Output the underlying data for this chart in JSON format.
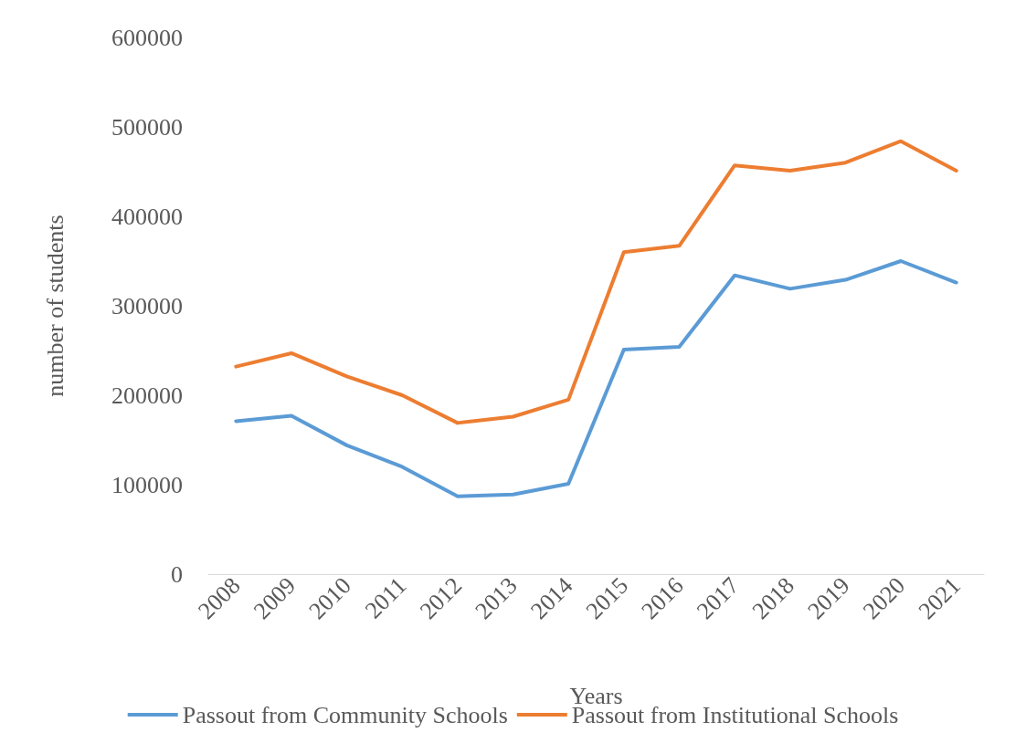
{
  "chart_data": {
    "type": "line",
    "xlabel": "Years",
    "ylabel": "number of students",
    "categories": [
      "2008",
      "2009",
      "2010",
      "2011",
      "2012",
      "2013",
      "2014",
      "2015",
      "2016",
      "2017",
      "2018",
      "2019",
      "2020",
      "2021"
    ],
    "series": [
      {
        "name": "Passout from Community Schools",
        "color": "#5b9bd5",
        "values": [
          171000,
          177000,
          144000,
          120000,
          87000,
          89000,
          101000,
          251000,
          254000,
          334000,
          319000,
          329000,
          350000,
          326000
        ]
      },
      {
        "name": "Passout from Institutional Schools",
        "color": "#ed7d31",
        "values": [
          232000,
          247000,
          221000,
          200000,
          169000,
          176000,
          195000,
          360000,
          367000,
          457000,
          451000,
          460000,
          484000,
          451000
        ]
      }
    ],
    "ylim": [
      0,
      600000
    ],
    "yticks": [
      0,
      100000,
      200000,
      300000,
      400000,
      500000,
      600000
    ],
    "grid": false,
    "legend": "bottom",
    "marker": "none",
    "line_style": "solid"
  }
}
